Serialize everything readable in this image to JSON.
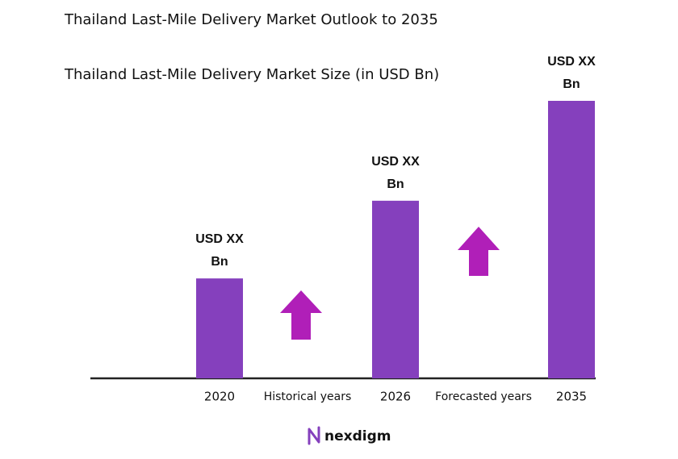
{
  "chart_data": {
    "type": "bar",
    "title": "Thailand Last-Mile Delivery Market Outlook to 2035",
    "subtitle": "Thailand Last-Mile Delivery Market Size (in USD Bn)",
    "categories": [
      "2020",
      "Historical years",
      "2026",
      "Forecasted years",
      "2035"
    ],
    "values": [
      36,
      null,
      64,
      null,
      100
    ],
    "value_labels": [
      "USD XX Bn",
      null,
      "USD XX Bn",
      null,
      "USD XX Bn"
    ],
    "color": "#8540bd",
    "brand": "nexdigm"
  }
}
